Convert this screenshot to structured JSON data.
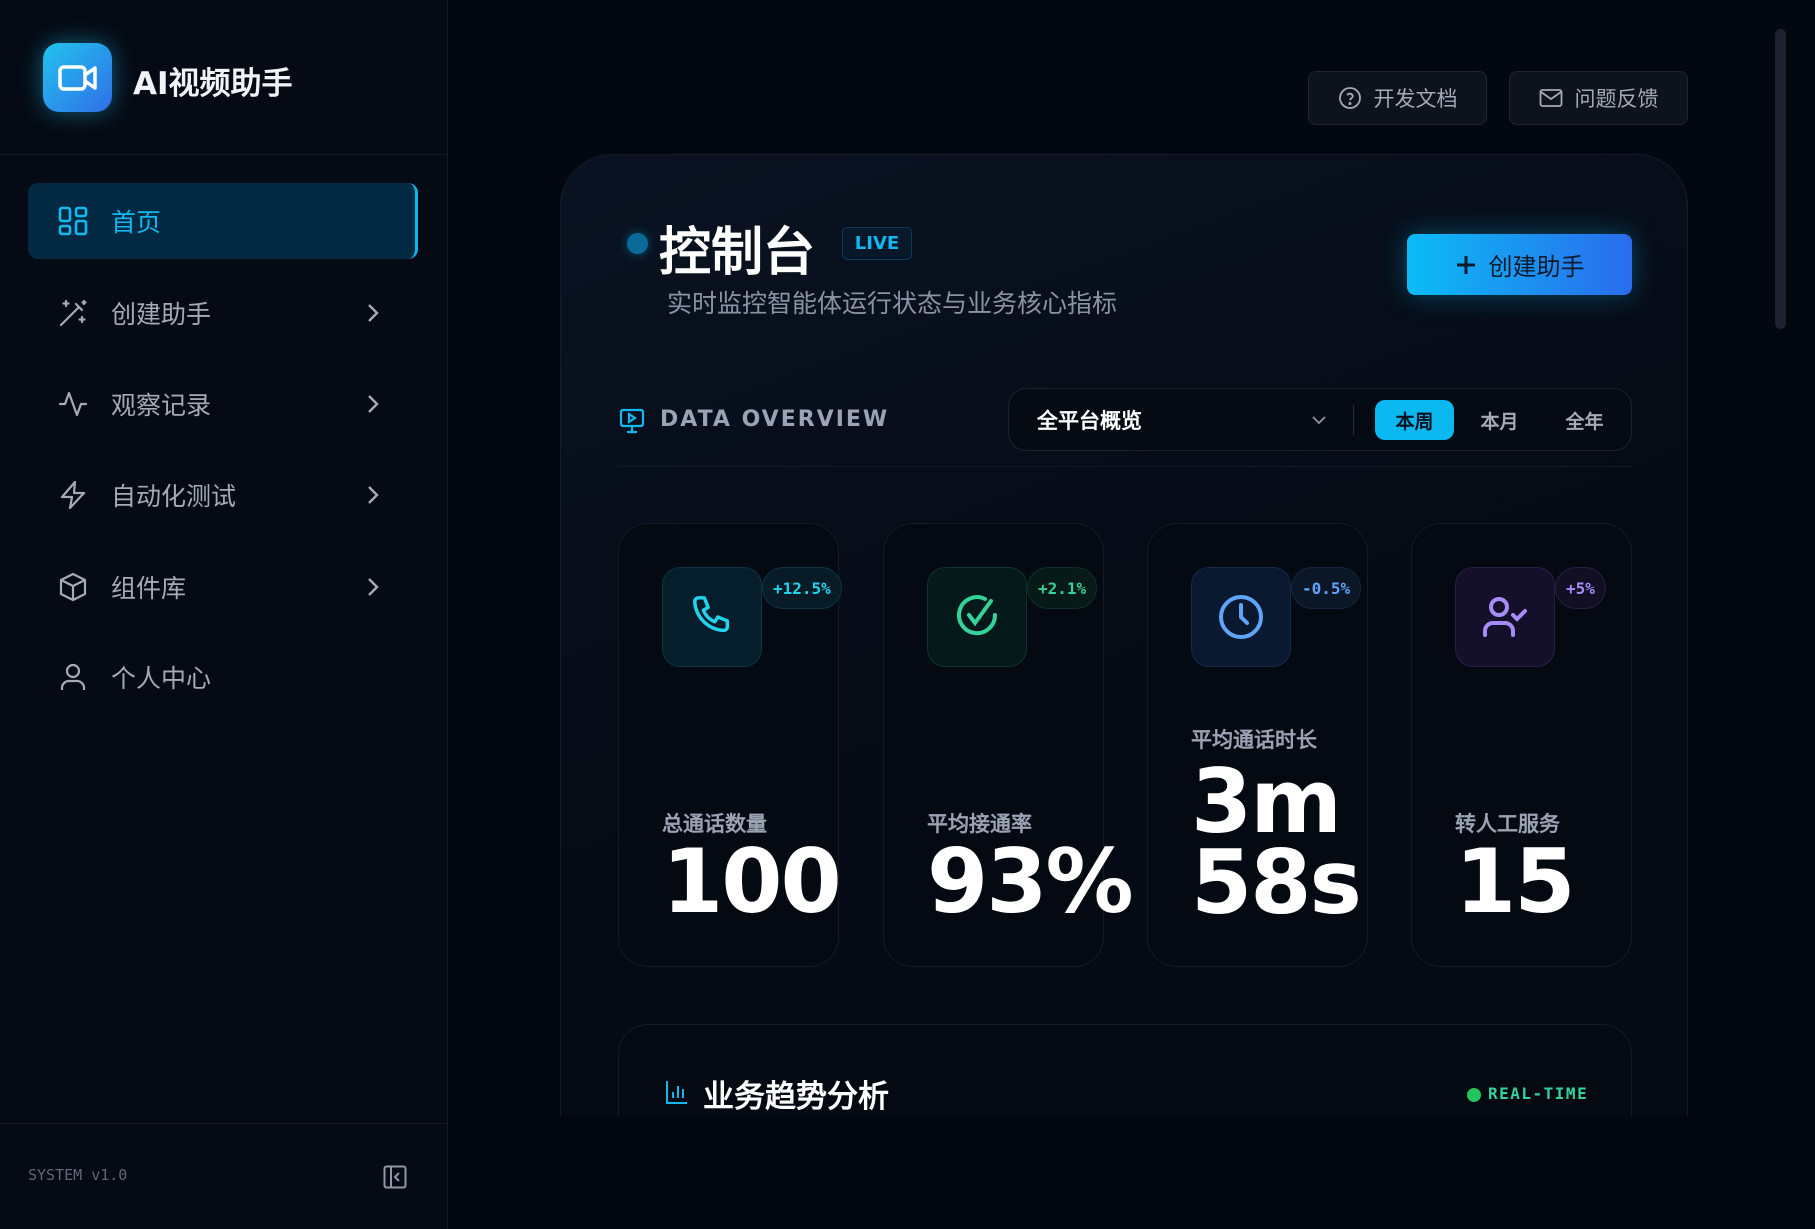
{
  "app": {
    "title": "AI视频助手",
    "version": "SYSTEM v1.0",
    "icon": "video-camera-icon"
  },
  "sidebar": {
    "items": [
      {
        "label": "首页",
        "icon": "grid-icon",
        "active": true
      },
      {
        "label": "创建助手",
        "icon": "magic-wand-icon",
        "chevron": true
      },
      {
        "label": "观察记录",
        "icon": "activity-icon",
        "chevron": true
      },
      {
        "label": "自动化测试",
        "icon": "lightning-icon",
        "chevron": true
      },
      {
        "label": "组件库",
        "icon": "cube-icon",
        "chevron": true
      },
      {
        "label": "个人中心",
        "icon": "user-icon"
      }
    ]
  },
  "topbar": {
    "docs": "开发文档",
    "feedback": "问题反馈"
  },
  "header": {
    "title": "控制台",
    "badge": "LIVE",
    "subtitle": "实时监控智能体运行状态与业务核心指标",
    "create_button": "创建助手"
  },
  "overview": {
    "label": "DATA OVERVIEW",
    "scope": "全平台概览",
    "ranges": [
      "本周",
      "本月",
      "全年"
    ],
    "selected_range": "本周"
  },
  "stats": [
    {
      "label": "总通话数量",
      "value": "100",
      "change": "+12.5%",
      "icon": "phone-icon",
      "color": "#22d3ee"
    },
    {
      "label": "平均接通率",
      "value": "93%",
      "change": "+2.1%",
      "icon": "check-circle-icon",
      "color": "#34d399"
    },
    {
      "label": "平均通话时长",
      "value": "3m 58s",
      "value_lines": [
        "3m",
        "58s"
      ],
      "change": "-0.5%",
      "icon": "clock-icon",
      "color": "#60a5fa"
    },
    {
      "label": "转人工服务",
      "value": "15",
      "change": "+5%",
      "icon": "user-check-icon",
      "color": "#a78bfa"
    }
  ],
  "trend": {
    "title": "业务趋势分析",
    "status": "REAL-TIME",
    "status_color": "#22c55e"
  },
  "colors": {
    "accent": "#0bb8f0",
    "background": "#03070f"
  }
}
